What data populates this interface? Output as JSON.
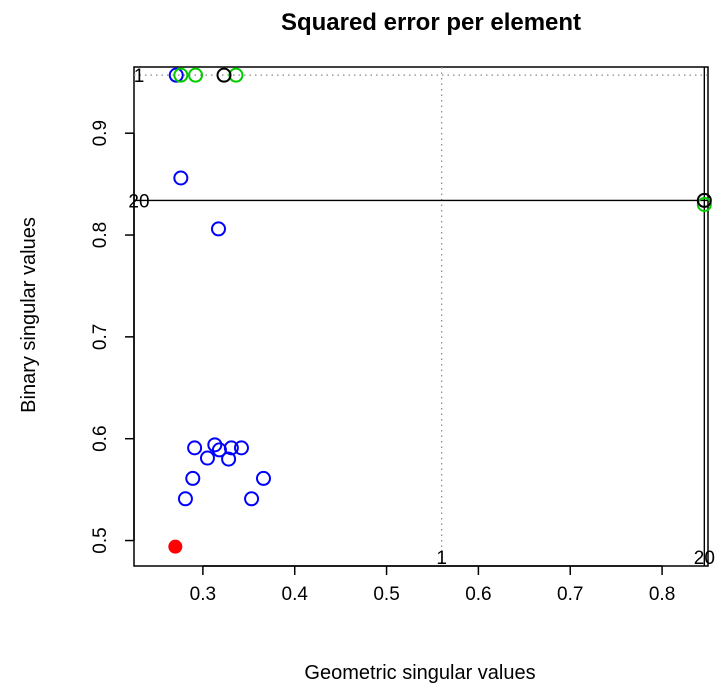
{
  "chart_data": {
    "type": "scatter",
    "title": "Squared error per element",
    "xlabel": "Geometric singular values",
    "ylabel": "Binary singular values",
    "xlim": [
      0.225,
      0.85
    ],
    "ylim": [
      0.475,
      0.965
    ],
    "xticks": [
      0.3,
      0.4,
      0.5,
      0.6,
      0.7,
      0.8
    ],
    "xtick_labels": [
      "0.3",
      "0.4",
      "0.5",
      "0.6",
      "0.7",
      "0.8"
    ],
    "yticks": [
      0.5,
      0.6,
      0.7,
      0.8,
      0.9
    ],
    "ytick_labels": [
      "0.5",
      "0.6",
      "0.7",
      "0.8",
      "0.9"
    ],
    "grid": false,
    "series": [
      {
        "marker": "open-circle",
        "color": "#0000ff",
        "points": [
          {
            "x": 0.271,
            "y": 0.957
          },
          {
            "x": 0.276,
            "y": 0.856
          },
          {
            "x": 0.317,
            "y": 0.806
          },
          {
            "x": 0.281,
            "y": 0.541
          },
          {
            "x": 0.289,
            "y": 0.561
          },
          {
            "x": 0.291,
            "y": 0.591
          },
          {
            "x": 0.305,
            "y": 0.581
          },
          {
            "x": 0.313,
            "y": 0.594
          },
          {
            "x": 0.318,
            "y": 0.589
          },
          {
            "x": 0.328,
            "y": 0.58
          },
          {
            "x": 0.331,
            "y": 0.591
          },
          {
            "x": 0.342,
            "y": 0.591
          },
          {
            "x": 0.353,
            "y": 0.541
          },
          {
            "x": 0.366,
            "y": 0.561
          }
        ]
      },
      {
        "marker": "open-circle",
        "color": "#00cc00",
        "points": [
          {
            "x": 0.276,
            "y": 0.957
          },
          {
            "x": 0.292,
            "y": 0.957
          },
          {
            "x": 0.336,
            "y": 0.957
          },
          {
            "x": 0.846,
            "y": 0.83
          }
        ]
      },
      {
        "marker": "open-circle",
        "color": "#000000",
        "points": [
          {
            "x": 0.323,
            "y": 0.957
          },
          {
            "x": 0.846,
            "y": 0.834
          }
        ]
      },
      {
        "marker": "filled-circle",
        "color": "#ff0000",
        "points": [
          {
            "x": 0.27,
            "y": 0.494
          }
        ]
      }
    ],
    "reference_lines": [
      {
        "orientation": "vertical",
        "x": 0.56,
        "style": "dotted",
        "color": "#888888",
        "label": "1",
        "label_position": "bottom"
      },
      {
        "orientation": "vertical",
        "x": 0.846,
        "style": "solid",
        "color": "#000000",
        "label": "20",
        "label_position": "bottom"
      },
      {
        "orientation": "horizontal",
        "y": 0.957,
        "style": "dotted",
        "color": "#888888",
        "label": "1",
        "label_position": "left"
      },
      {
        "orientation": "horizontal",
        "y": 0.834,
        "style": "solid",
        "color": "#000000",
        "label": "20",
        "label_position": "left"
      }
    ]
  }
}
